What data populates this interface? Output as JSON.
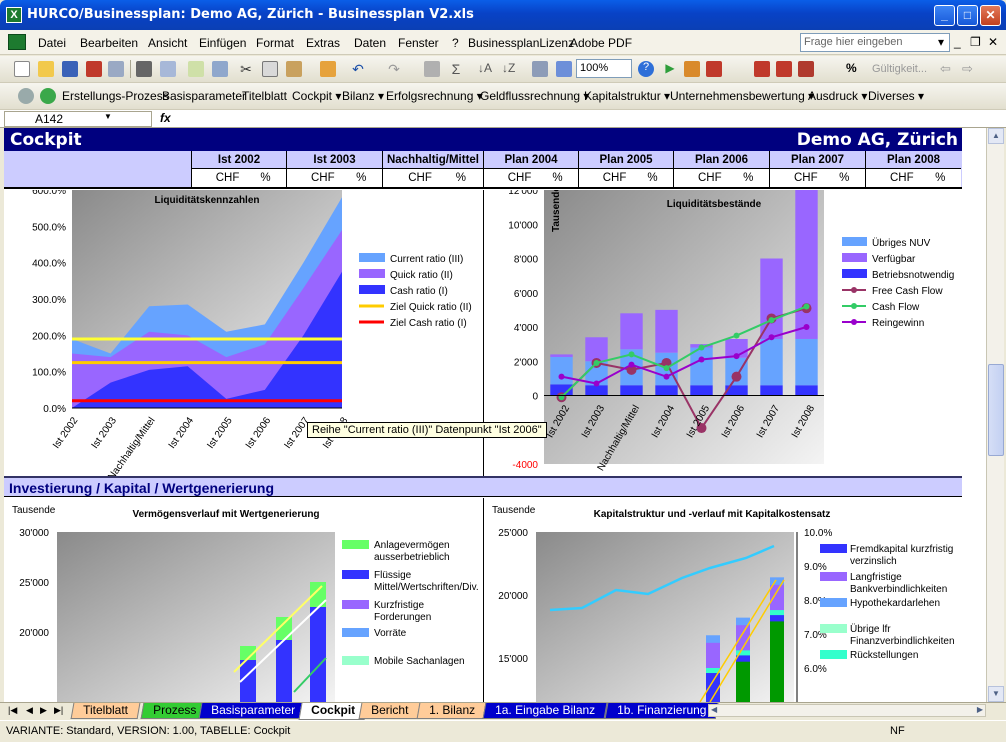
{
  "window": {
    "title": "HURCO/Businessplan: Demo AG, Zürich - Businessplan V2.xls",
    "app_icon": "X",
    "minimize": "0",
    "maximize": "1",
    "close": "r"
  },
  "menu": {
    "items": [
      "Datei",
      "Bearbeiten",
      "Ansicht",
      "Einfügen",
      "Format",
      "Extras",
      "Daten",
      "Fenster",
      "?",
      "BusinessplanLizenz",
      "Adobe PDF"
    ],
    "ask_placeholder": "Frage hier eingeben"
  },
  "toolbar": {
    "zoom": "100%",
    "validity": "Gültigkeit..."
  },
  "toolbar2": {
    "items": [
      "Erstellungs-Prozess",
      "Basisparameter",
      "Titelblatt",
      "Cockpit ▾",
      "Bilanz ▾",
      "Erfolgsrechnung ▾",
      "Geldflussrechnung ▾",
      "Kapitalstruktur ▾",
      "Unternehmensbewertung ▾",
      "Ausdruck ▾",
      "Diverses ▾"
    ]
  },
  "formula": {
    "cell_ref": "A142",
    "fx": "fx",
    "content": ""
  },
  "sheet": {
    "title": "Cockpit",
    "company": "Demo AG, Zürich",
    "columns": [
      "Ist 2002",
      "Ist 2003",
      "Nachhaltig/Mittel",
      "Plan 2004",
      "Plan 2005",
      "Plan 2006",
      "Plan 2007",
      "Plan 2008"
    ],
    "unit_chf": "CHF",
    "unit_pct": "%",
    "section2": "Investierung / Kapital / Wertgenerierung"
  },
  "tooltip": "Reihe \"Current ratio (III)\" Datenpunkt \"Ist 2006\"",
  "chart_data": [
    {
      "type": "area",
      "title": "Liquiditätskennzahlen",
      "categories": [
        "Ist 2002",
        "Ist 2003",
        "Nachhaltig/Mittel",
        "Ist 2004",
        "Ist 2005",
        "Ist 2006",
        "Ist 2007",
        "Ist 2008"
      ],
      "ylim": [
        0,
        600
      ],
      "yticks": [
        "0.0%",
        "100.0%",
        "200.0%",
        "300.0%",
        "400.0%",
        "500.0%",
        "600.0%"
      ],
      "series": [
        {
          "name": "Current ratio (III)",
          "values": [
            190,
            150,
            280,
            285,
            210,
            230,
            400,
            580
          ],
          "color": "#66a3ff"
        },
        {
          "name": "Quick ratio (II)",
          "values": [
            150,
            140,
            210,
            200,
            140,
            175,
            330,
            490
          ],
          "color": "#9966ff"
        },
        {
          "name": "Cash ratio (I)",
          "values": [
            0,
            70,
            105,
            115,
            25,
            50,
            200,
            375
          ],
          "color": "#3333ff"
        }
      ],
      "targets": [
        {
          "name": "Ziel Current ratio (III)",
          "value": 190,
          "color": "#ffff33"
        },
        {
          "name": "Ziel Quick ratio (II)",
          "value": 125,
          "color": "#ffcc00"
        },
        {
          "name": "Ziel Cash ratio (I)",
          "value": 20,
          "color": "#ff0000"
        }
      ],
      "legend_visible": [
        "Current ratio (III)",
        "Quick ratio (II)",
        "Cash ratio (I)",
        "Ziel Quick ratio (II)",
        "Ziel Cash ratio (I)"
      ]
    },
    {
      "type": "bar",
      "title": "Liquiditätsbestände",
      "ylabel": "Tausende",
      "categories": [
        "Ist 2002",
        "Ist 2003",
        "Nachhaltig/Mittel",
        "Ist 2004",
        "Ist 2005",
        "Ist 2006",
        "Ist 2007",
        "Ist 2008"
      ],
      "ylim": [
        -4000,
        12000
      ],
      "yticks": [
        "-4000",
        "-2000",
        "0",
        "2'000",
        "4'000",
        "6'000",
        "8'000",
        "10'000",
        "12'000"
      ],
      "stack": [
        {
          "name": "Übriges NUV",
          "values": [
            1600,
            1400,
            2100,
            1900,
            2200,
            1600,
            2700,
            2700
          ],
          "color": "#66a3ff"
        },
        {
          "name": "Verfügbar",
          "values": [
            150,
            1400,
            2100,
            2500,
            200,
            1100,
            4700,
            9500
          ],
          "color": "#9966ff"
        },
        {
          "name": "Betriebsnotwendig",
          "values": [
            650,
            600,
            600,
            600,
            600,
            600,
            600,
            600
          ],
          "color": "#3333ff"
        }
      ],
      "lines": [
        {
          "name": "Free Cash Flow",
          "values": [
            -100,
            1900,
            1500,
            1900,
            -1900,
            1100,
            4500,
            5100
          ],
          "color": "#993366"
        },
        {
          "name": "Cash Flow",
          "values": [
            -100,
            1900,
            2400,
            1600,
            2800,
            3500,
            4400,
            5200
          ],
          "color": "#33cc66"
        },
        {
          "name": "Reingewinn",
          "values": [
            1100,
            700,
            1800,
            1100,
            2100,
            2300,
            3400,
            4000
          ],
          "color": "#9900cc"
        }
      ]
    },
    {
      "type": "bar",
      "title": "Vermögensverlauf mit Wertgenerierung",
      "ylabel": "Tausende",
      "ylim": [
        15000,
        30000
      ],
      "yticks": [
        "20'000",
        "25'000",
        "30'000"
      ],
      "legend": [
        "Anlagevermögen ausserbetrieblich",
        "Flüssige Mittel/Wertschriften/Div.",
        "Kurzfristige Forderungen",
        "Vorräte",
        "Mobile Sachanlagen"
      ],
      "colors": [
        "#66ff66",
        "#3333ff",
        "#9966ff",
        "#66a3ff",
        "#99ffcc"
      ]
    },
    {
      "type": "bar",
      "title": "Kapitalstruktur und -verlauf mit Kapitalkostensatz",
      "ylabel": "Tausende",
      "ylim": [
        15000,
        25000
      ],
      "yticks": [
        "15'000",
        "20'000",
        "25'000"
      ],
      "y2ticks": [
        "6.0%",
        "7.0%",
        "8.0%",
        "9.0%",
        "10.0%"
      ],
      "legend": [
        "Fremdkapital kurzfristig verzinslich",
        "Langfristige Bankverbindlichkeiten",
        "Hypothekardarlehen",
        "Übrige lfr Finanzverbindlichkeiten",
        "Rückstellungen"
      ],
      "colors": [
        "#3333ff",
        "#9966ff",
        "#66a3ff",
        "#99ffcc",
        "#33ffcc"
      ]
    }
  ],
  "tabs": [
    "Titelblatt",
    "Prozess",
    "Basisparameter",
    "Cockpit",
    "Bericht",
    "1. Bilanz",
    "1a. Eingabe Bilanz",
    "1b. Finanzierung"
  ],
  "status": {
    "text": "VARIANTE: Standard, VERSION: 1.00, TABELLE: Cockpit",
    "nf": "NF"
  }
}
